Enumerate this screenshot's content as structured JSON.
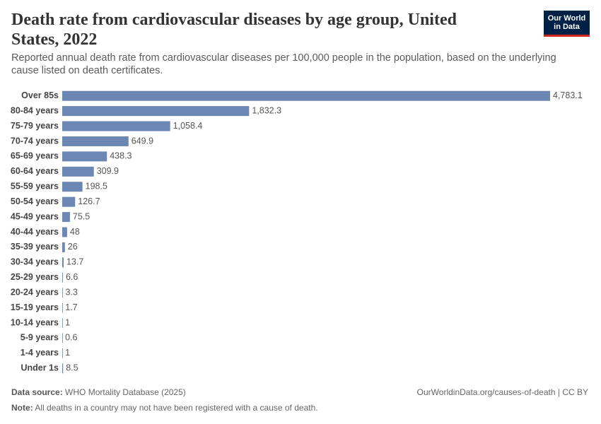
{
  "chart_data": {
    "type": "bar",
    "orientation": "horizontal",
    "title": "Death rate from cardiovascular diseases by age group, United States, 2022",
    "subtitle": "Reported annual death rate from cardiovascular diseases per 100,000 people in the population, based on the underlying cause listed on death certificates.",
    "categories": [
      "Over 85s",
      "80-84 years",
      "75-79 years",
      "70-74 years",
      "65-69 years",
      "60-64 years",
      "55-59 years",
      "50-54 years",
      "45-49 years",
      "40-44 years",
      "35-39 years",
      "30-34 years",
      "25-29 years",
      "20-24 years",
      "15-19 years",
      "10-14 years",
      "5-9 years",
      "1-4 years",
      "Under 1s"
    ],
    "values": [
      4783.1,
      1832.3,
      1058.4,
      649.9,
      438.3,
      309.9,
      198.5,
      126.7,
      75.5,
      48,
      26,
      13.7,
      6.6,
      3.3,
      1.7,
      1,
      0.6,
      1,
      8.5
    ],
    "value_labels": [
      "4,783.1",
      "1,832.3",
      "1,058.4",
      "649.9",
      "438.3",
      "309.9",
      "198.5",
      "126.7",
      "75.5",
      "48",
      "26",
      "13.7",
      "6.6",
      "3.3",
      "1.7",
      "1",
      "0.6",
      "1",
      "8.5"
    ],
    "color": "#6d87b5",
    "xlim": [
      0,
      4783.1
    ]
  },
  "footer": {
    "source_label": "Data source:",
    "source": "WHO Mortality Database (2025)",
    "url": "OurWorldinData.org/causes-of-death | CC BY",
    "note_label": "Note:",
    "note": "All deaths in a country may not have been registered with a cause of death."
  },
  "logo": {
    "line1": "Our World",
    "line2": "in Data"
  }
}
